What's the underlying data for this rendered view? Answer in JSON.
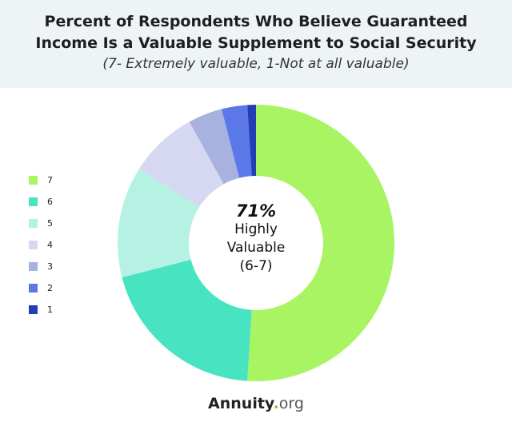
{
  "chart_data": {
    "type": "pie",
    "donut": true,
    "title": "Percent of Respondents Who Believe Guaranteed Income Is a Valuable Supplement to Social Security",
    "title_lines": [
      "Percent of Respondents Who Believe Guaranteed",
      "Income Is a Valuable Supplement to Social Security"
    ],
    "subtitle": "(7- Extremely valuable, 1-Not at all valuable)",
    "legend_placement": "left",
    "categories": [
      "7",
      "6",
      "5",
      "4",
      "3",
      "2",
      "1"
    ],
    "values": [
      51,
      20,
      13,
      8,
      4,
      3,
      1
    ],
    "colors": [
      "#a8f463",
      "#48e4c2",
      "#b6f2e3",
      "#d5d8f0",
      "#a8b2df",
      "#5a78e8",
      "#233db4"
    ],
    "center_label": {
      "value": "71%",
      "lines": [
        "Highly",
        "Valuable",
        "(6-7)"
      ]
    }
  },
  "logo": {
    "name": "Annuity",
    "dot": ".",
    "suffix": "org"
  }
}
